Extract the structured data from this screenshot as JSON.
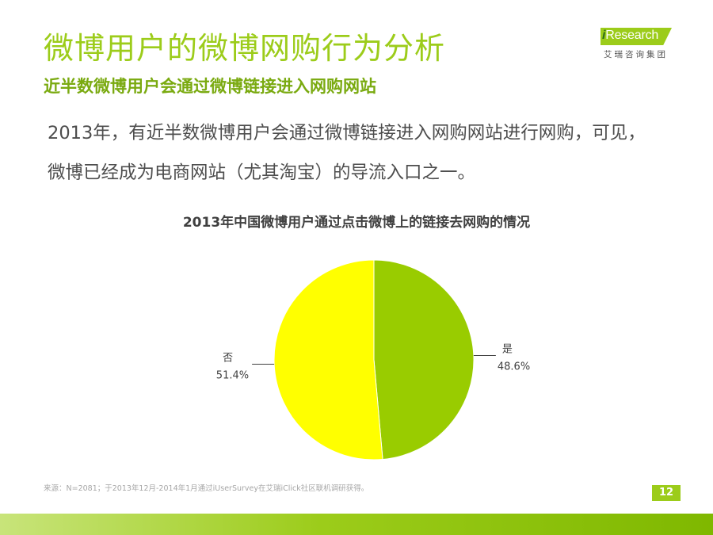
{
  "header": {
    "title": "微博用户的微博网购行为分析",
    "subtitle": "近半数微博用户会通过微博链接进入网购网站"
  },
  "logo": {
    "prefix": "i",
    "word": "Research",
    "cn": "艾瑞咨询集团"
  },
  "body": {
    "line1": "2013年，有近半数微博用户会通过微博链接进入网购网站进行网购，可见，",
    "line2": "微博已经成为电商网站（尤其淘宝）的导流入口之一。"
  },
  "chart_data": {
    "type": "pie",
    "title": "2013年中国微博用户通过点击微博上的链接去网购的情况",
    "slices": [
      {
        "label": "是",
        "value": 48.6,
        "display": "48.6%",
        "color": "#99cc00"
      },
      {
        "label": "否",
        "value": 51.4,
        "display": "51.4%",
        "color": "#ffff00"
      }
    ],
    "start": "12 o'clock",
    "direction": "clockwise",
    "legend": "none"
  },
  "footer": {
    "source": "来源：N=2081；于2013年12月-2014年1月通过iUserSurvey在艾瑞iClick社区联机调研获得。",
    "page_number": "12"
  },
  "colors": {
    "brand_green": "#9ccc1a",
    "dark_green": "#7aaa10",
    "text_gray": "#4d4d4d"
  }
}
